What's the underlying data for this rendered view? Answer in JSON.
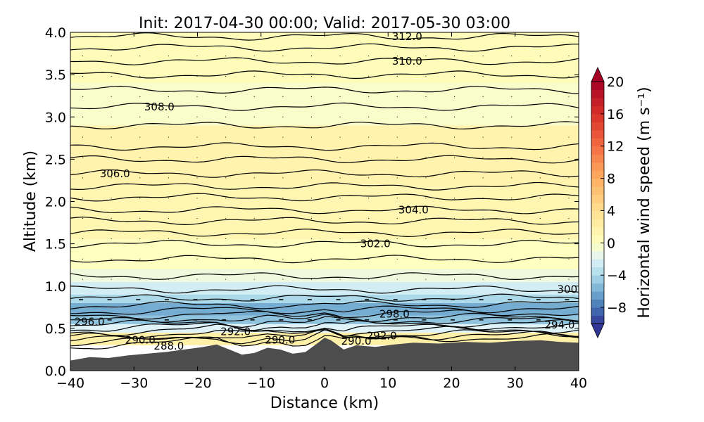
{
  "chart_data": {
    "type": "heatmap",
    "title": "Init: 2017-04-30 00:00; Valid: 2017-05-30 03:00",
    "xlabel": "Distance (km)",
    "ylabel": "Altitude (km)",
    "xlim": [
      -40,
      40
    ],
    "ylim": [
      0.0,
      4.0
    ],
    "x_ticks": [
      -40,
      -30,
      -20,
      -10,
      0,
      10,
      20,
      30,
      40
    ],
    "x_tick_labels": [
      "−40",
      "−30",
      "−20",
      "−10",
      "0",
      "10",
      "20",
      "30",
      "40"
    ],
    "y_ticks": [
      0.0,
      0.5,
      1.0,
      1.5,
      2.0,
      2.5,
      3.0,
      3.5,
      4.0
    ],
    "y_tick_labels": [
      "0.0",
      "0.5",
      "1.0",
      "1.5",
      "2.0",
      "2.5",
      "3.0",
      "3.5",
      "4.0"
    ],
    "colorbar": {
      "label": "Horizontal wind speed (m s⁻¹)",
      "range": [
        -10,
        20
      ],
      "ticks": [
        20,
        16,
        12,
        8,
        4,
        0,
        -4,
        -8
      ],
      "tick_labels": [
        "20",
        "16",
        "12",
        "8",
        "4",
        "0",
        "−4",
        "−8"
      ],
      "colormap": "RdYlBu_r",
      "extend": "both"
    },
    "terrain_color": "#4d4d4d",
    "terrain": [
      {
        "x": -40,
        "y": 0.12
      },
      {
        "x": -37,
        "y": 0.16
      },
      {
        "x": -34,
        "y": 0.15
      },
      {
        "x": -31,
        "y": 0.18
      },
      {
        "x": -28,
        "y": 0.2
      },
      {
        "x": -25,
        "y": 0.22
      },
      {
        "x": -22,
        "y": 0.25
      },
      {
        "x": -19,
        "y": 0.28
      },
      {
        "x": -17,
        "y": 0.31
      },
      {
        "x": -15,
        "y": 0.25
      },
      {
        "x": -13,
        "y": 0.19
      },
      {
        "x": -11,
        "y": 0.21
      },
      {
        "x": -9,
        "y": 0.27
      },
      {
        "x": -7,
        "y": 0.25
      },
      {
        "x": -5,
        "y": 0.2
      },
      {
        "x": -3,
        "y": 0.22
      },
      {
        "x": -1,
        "y": 0.33
      },
      {
        "x": 0,
        "y": 0.39
      },
      {
        "x": 1,
        "y": 0.36
      },
      {
        "x": 3,
        "y": 0.25
      },
      {
        "x": 5,
        "y": 0.3
      },
      {
        "x": 8,
        "y": 0.28
      },
      {
        "x": 11,
        "y": 0.31
      },
      {
        "x": 14,
        "y": 0.33
      },
      {
        "x": 18,
        "y": 0.32
      },
      {
        "x": 22,
        "y": 0.34
      },
      {
        "x": 26,
        "y": 0.33
      },
      {
        "x": 30,
        "y": 0.35
      },
      {
        "x": 34,
        "y": 0.36
      },
      {
        "x": 37,
        "y": 0.34
      },
      {
        "x": 40,
        "y": 0.33
      }
    ],
    "wind_field_bands": [
      {
        "ymin": 0.3,
        "ymax": 0.45,
        "value": 2
      },
      {
        "ymin": 0.45,
        "ymax": 0.55,
        "value": -2
      },
      {
        "ymin": 0.55,
        "ymax": 0.65,
        "value": -5
      },
      {
        "ymin": 0.65,
        "ymax": 0.8,
        "value": -6
      },
      {
        "ymin": 0.8,
        "ymax": 0.9,
        "value": -4
      },
      {
        "ymin": 0.9,
        "ymax": 1.05,
        "value": -2.5
      },
      {
        "ymin": 1.05,
        "ymax": 1.2,
        "value": -1
      },
      {
        "ymin": 1.2,
        "ymax": 1.55,
        "value": 0
      },
      {
        "ymin": 1.55,
        "ymax": 2.2,
        "value": 1.2
      },
      {
        "ymin": 2.2,
        "ymax": 2.9,
        "value": 1.5
      },
      {
        "ymin": 2.9,
        "ymax": 3.4,
        "value": -0.4
      },
      {
        "ymin": 3.4,
        "ymax": 4.0,
        "value": 0.4
      }
    ],
    "theta_contour_levels": [
      {
        "y": 0.36,
        "label": "290.0",
        "label_x": -29
      },
      {
        "y": 0.39,
        "label": "",
        "label_x": null
      },
      {
        "y": 0.42,
        "label": "",
        "label_x": null
      },
      {
        "y": 0.46,
        "label": "292.0",
        "label_x": -14
      },
      {
        "y": 0.5,
        "label": "",
        "label_x": null
      },
      {
        "y": 0.54,
        "label": "294.0",
        "label_x": 37
      },
      {
        "y": 0.58,
        "label": "296.0",
        "label_x": -37
      },
      {
        "y": 0.62,
        "label": "",
        "label_x": null
      },
      {
        "y": 0.67,
        "label": "298.0",
        "label_x": 11
      },
      {
        "y": 0.72,
        "label": "",
        "label_x": null
      },
      {
        "y": 0.78,
        "label": "",
        "label_x": null
      },
      {
        "y": 0.86,
        "label": "",
        "label_x": null
      },
      {
        "y": 0.96,
        "label": "300.0",
        "label_x": 39
      },
      {
        "y": 1.12,
        "label": "",
        "label_x": null
      },
      {
        "y": 1.32,
        "label": "",
        "label_x": null
      },
      {
        "y": 1.5,
        "label": "302.0",
        "label_x": 8
      },
      {
        "y": 1.63,
        "label": "",
        "label_x": null
      },
      {
        "y": 1.77,
        "label": "",
        "label_x": null
      },
      {
        "y": 1.9,
        "label": "304.0",
        "label_x": 14
      },
      {
        "y": 2.05,
        "label": "",
        "label_x": null
      },
      {
        "y": 2.18,
        "label": "",
        "label_x": null
      },
      {
        "y": 2.33,
        "label": "306.0",
        "label_x": -33
      },
      {
        "y": 2.5,
        "label": "",
        "label_x": null
      },
      {
        "y": 2.65,
        "label": "",
        "label_x": null
      },
      {
        "y": 2.9,
        "label": "",
        "label_x": null
      },
      {
        "y": 3.12,
        "label": "308.0",
        "label_x": -26
      },
      {
        "y": 3.32,
        "label": "",
        "label_x": null
      },
      {
        "y": 3.5,
        "label": "",
        "label_x": null
      },
      {
        "y": 3.66,
        "label": "310.0",
        "label_x": 13
      },
      {
        "y": 3.82,
        "label": "",
        "label_x": null
      },
      {
        "y": 3.95,
        "label": "312.0",
        "label_x": 13
      }
    ],
    "extra_contour_labels": [
      {
        "x": -24.5,
        "y": 0.29,
        "label": "288.0"
      },
      {
        "x": -7,
        "y": 0.36,
        "label": "290.0"
      },
      {
        "x": 5,
        "y": 0.35,
        "label": "290.0"
      },
      {
        "x": 9,
        "y": 0.41,
        "label": "292.0"
      }
    ]
  }
}
